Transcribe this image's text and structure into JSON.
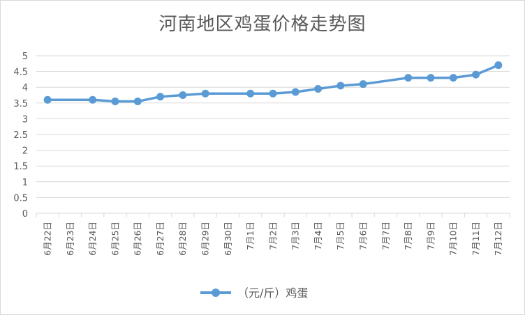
{
  "chart_data": {
    "type": "line",
    "title": "河南地区鸡蛋价格走势图",
    "categories": [
      "6月22日",
      "6月23日",
      "6月24日",
      "6月25日",
      "6月26日",
      "6月27日",
      "6月28日",
      "6月29日",
      "6月30日",
      "7月1日",
      "7月2日",
      "7月3日",
      "7月4日",
      "7月5日",
      "7月6日",
      "7月7日",
      "7月8日",
      "7月9日",
      "7月10日",
      "7月11日",
      "7月12日"
    ],
    "series": [
      {
        "name": "（元/斤）鸡蛋",
        "values": [
          3.6,
          null,
          3.6,
          3.55,
          3.55,
          3.7,
          3.75,
          3.8,
          null,
          3.8,
          3.8,
          3.85,
          3.95,
          4.05,
          4.1,
          null,
          4.3,
          4.3,
          4.3,
          4.4,
          4.7
        ]
      }
    ],
    "ylim": [
      0,
      5
    ],
    "yticks": [
      "0",
      "0.5",
      "1",
      "1.5",
      "2",
      "2.5",
      "3",
      "3.5",
      "4",
      "4.5",
      "5"
    ],
    "grid": true,
    "legend_position": "bottom",
    "colors": {
      "line": "#5B9BD5",
      "grid": "#d9d9d9",
      "text": "#595959"
    }
  }
}
